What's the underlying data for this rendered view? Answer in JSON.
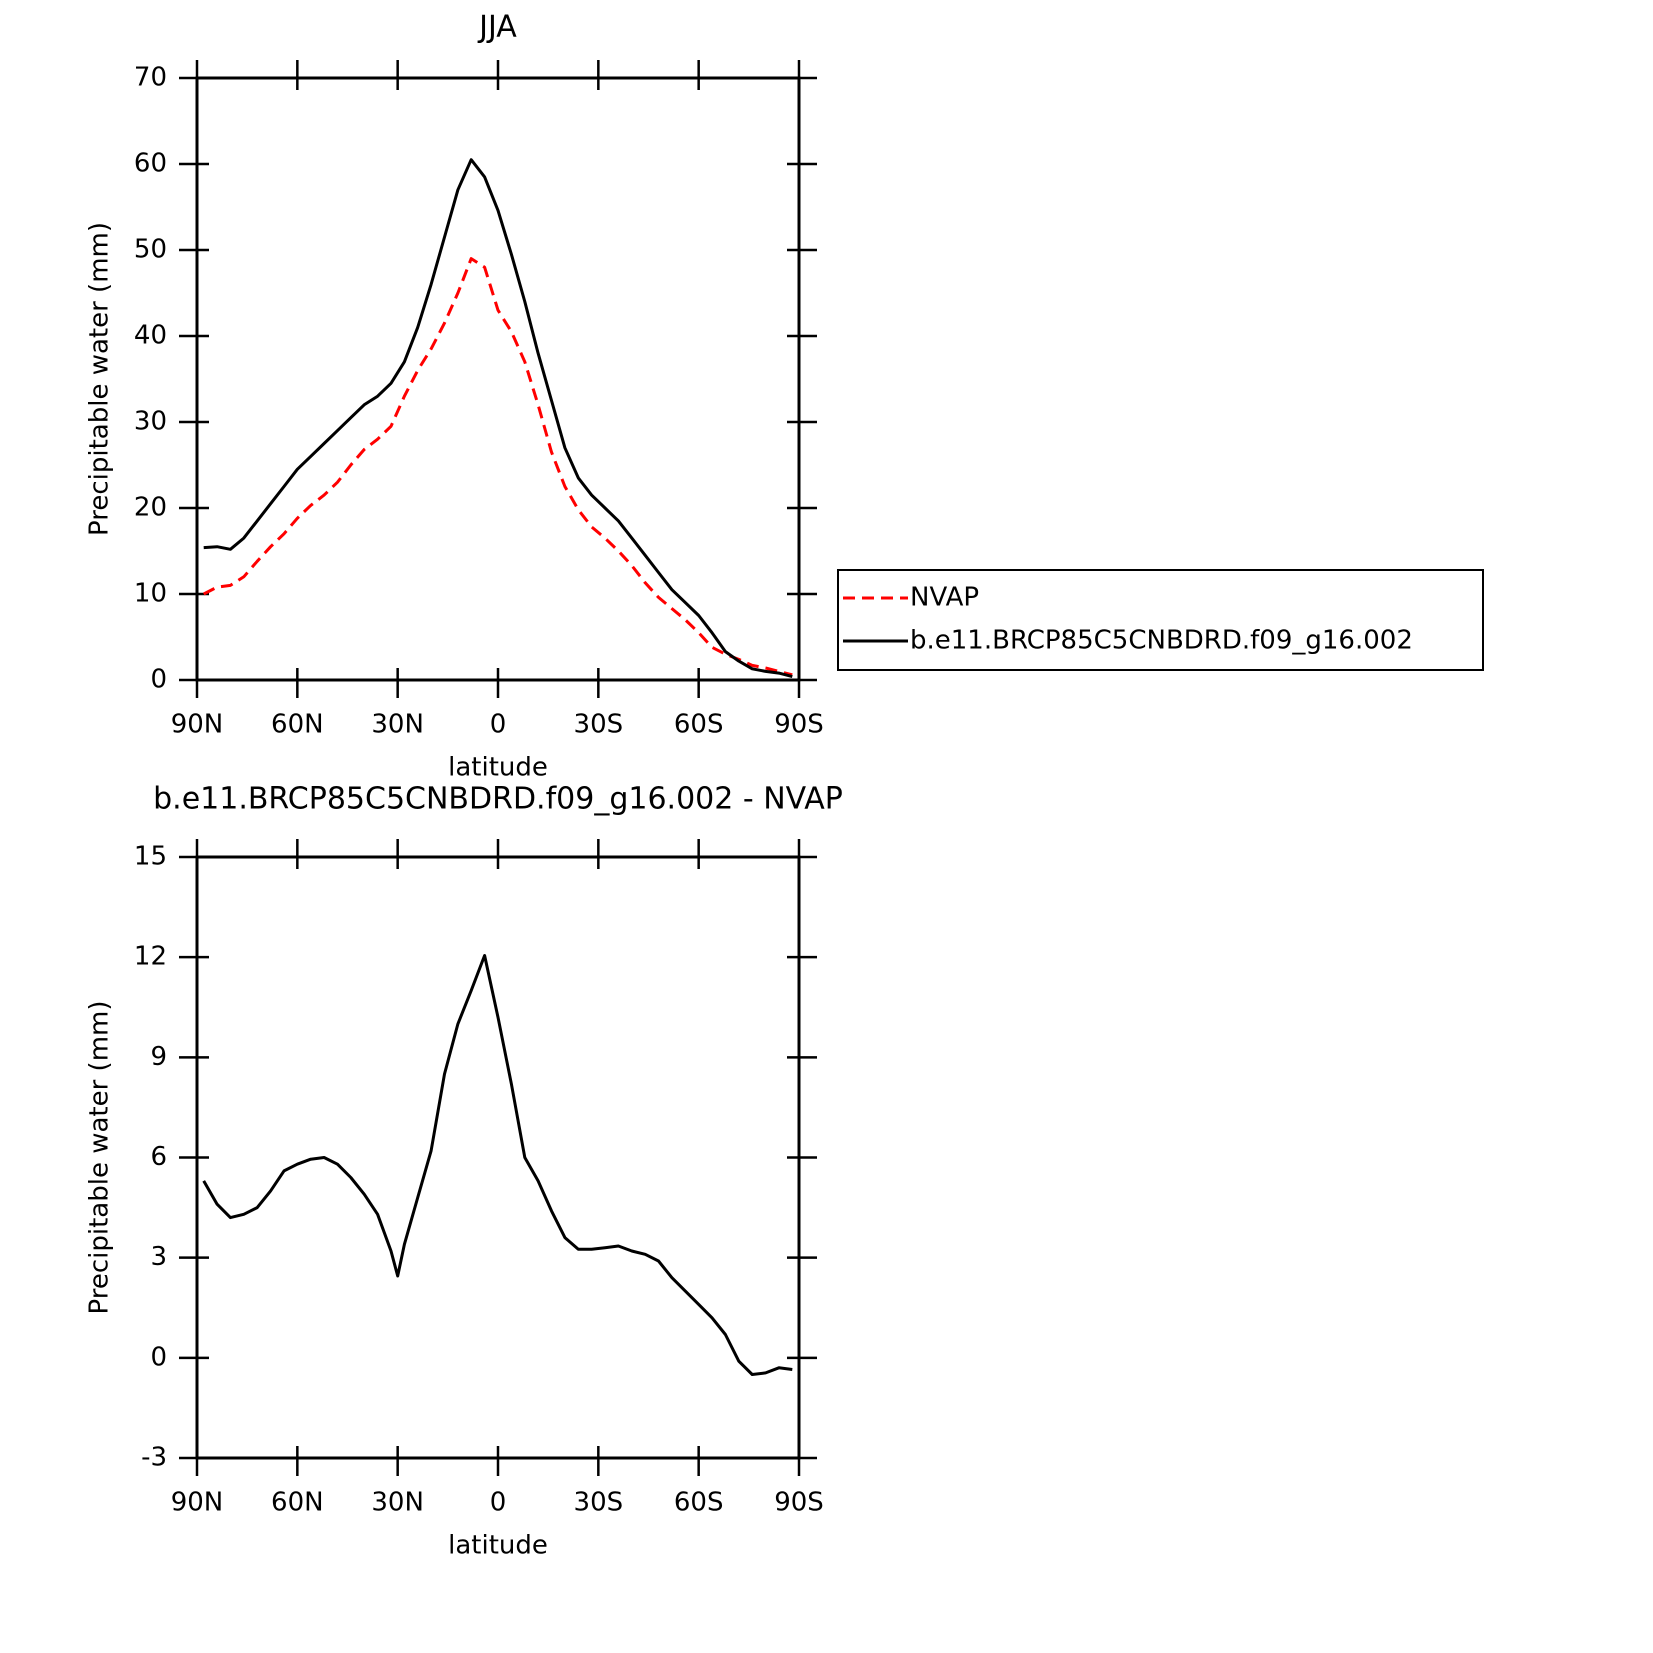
{
  "chart_data": [
    {
      "type": "line",
      "title": "JJA",
      "xlabel": "latitude",
      "ylabel": "Precipitable water (mm)",
      "x": [
        88,
        84,
        80,
        76,
        72,
        68,
        64,
        60,
        56,
        52,
        48,
        44,
        40,
        36,
        32,
        28,
        24,
        20,
        16,
        12,
        8,
        4,
        0,
        -4,
        -8,
        -12,
        -16,
        -20,
        -24,
        -28,
        -32,
        -36,
        -40,
        -44,
        -48,
        -52,
        -56,
        -60,
        -64,
        -68,
        -72,
        -76,
        -80,
        -84,
        -88
      ],
      "series": [
        {
          "name": "NVAP",
          "color": "#ff0000",
          "style": "dashed",
          "values": [
            10,
            10.8,
            11,
            12,
            13.8,
            15.5,
            17,
            18.8,
            20.3,
            21.5,
            23,
            25,
            26.8,
            28,
            29.5,
            33,
            36,
            38.5,
            41.5,
            45,
            49,
            48,
            43,
            40.5,
            37,
            32,
            26.5,
            22.5,
            19.8,
            17.8,
            16.5,
            15,
            13.3,
            11.3,
            9.6,
            8.3,
            7,
            5.5,
            3.8,
            3,
            2.4,
            1.7,
            1.4,
            1,
            0.6
          ]
        },
        {
          "name": "b.e11.BRCP85C5CNBDRD.f09_g16.002",
          "color": "#000000",
          "style": "solid",
          "values": [
            15.4,
            15.5,
            15.2,
            16.5,
            18.5,
            20.5,
            22.5,
            24.5,
            26,
            27.5,
            29,
            30.5,
            32,
            33,
            34.5,
            37,
            41,
            46,
            51.5,
            57,
            60.5,
            58.5,
            54.6,
            49.5,
            44,
            38,
            32.5,
            27,
            23.5,
            21.5,
            20,
            18.5,
            16.5,
            14.5,
            12.5,
            10.5,
            9,
            7.5,
            5.5,
            3.3,
            2.2,
            1.3,
            1,
            0.8,
            0.4
          ]
        }
      ],
      "xlim": [
        90,
        -90
      ],
      "xticks": [
        {
          "value": 90,
          "label": "90N"
        },
        {
          "value": 60,
          "label": "60N"
        },
        {
          "value": 30,
          "label": "30N"
        },
        0,
        {
          "value": -30,
          "label": "30S"
        },
        {
          "value": -60,
          "label": "60S"
        },
        {
          "value": -90,
          "label": "90S"
        }
      ],
      "ylim": [
        0,
        70
      ],
      "yticks": [
        0,
        10,
        20,
        30,
        40,
        50,
        60,
        70
      ],
      "legend": "right"
    },
    {
      "type": "line",
      "title": "b.e11.BRCP85C5CNBDRD.f09_g16.002 - NVAP",
      "xlabel": "latitude",
      "ylabel": "Precipitable water (mm)",
      "x": [
        88,
        84,
        80,
        76,
        72,
        68,
        64,
        60,
        56,
        52,
        48,
        44,
        40,
        36,
        32,
        30,
        28,
        24,
        20,
        16,
        12,
        8,
        4,
        0,
        -4,
        -8,
        -12,
        -16,
        -20,
        -24,
        -28,
        -32,
        -36,
        -40,
        -44,
        -48,
        -52,
        -56,
        -60,
        -64,
        -68,
        -72,
        -76,
        -80,
        -84,
        -88
      ],
      "series": [
        {
          "color": "#000000",
          "style": "solid",
          "values": [
            5.3,
            4.6,
            4.2,
            4.3,
            4.5,
            5.0,
            5.6,
            5.8,
            5.95,
            6.0,
            5.8,
            5.4,
            4.9,
            4.3,
            3.2,
            2.45,
            3.4,
            4.8,
            6.2,
            8.5,
            10.0,
            11.0,
            12.05,
            10.2,
            8.2,
            6.0,
            5.3,
            4.4,
            3.6,
            3.25,
            3.25,
            3.3,
            3.35,
            3.2,
            3.1,
            2.9,
            2.4,
            2.0,
            1.6,
            1.2,
            0.7,
            -0.1,
            -0.5,
            -0.45,
            -0.3,
            -0.35
          ]
        }
      ],
      "xlim": [
        90,
        -90
      ],
      "xticks": [
        {
          "value": 90,
          "label": "90N"
        },
        {
          "value": 60,
          "label": "60N"
        },
        {
          "value": 30,
          "label": "30N"
        },
        0,
        {
          "value": -30,
          "label": "30S"
        },
        {
          "value": -60,
          "label": "60S"
        },
        {
          "value": -90,
          "label": "90S"
        }
      ],
      "ylim": [
        -3,
        15
      ],
      "yticks": [
        -3,
        0,
        3,
        6,
        9,
        12,
        15
      ]
    }
  ]
}
